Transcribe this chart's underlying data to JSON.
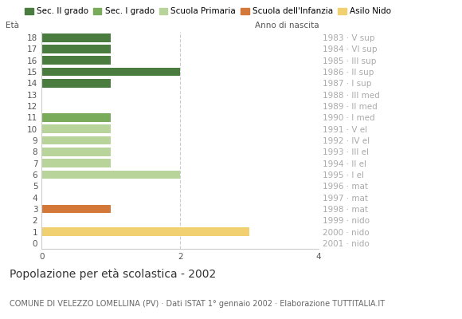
{
  "title": "Popolazione per età scolastica - 2002",
  "subtitle": "COMUNE DI VELEZZO LOMELLINA (PV) · Dati ISTAT 1° gennaio 2002 · Elaborazione TUTTITALIA.IT",
  "label_left": "Età",
  "label_right": "Anno di nascita",
  "xlim": [
    0,
    4
  ],
  "xticks": [
    0,
    2,
    4
  ],
  "background_color": "#ffffff",
  "legend_labels": [
    "Sec. II grado",
    "Sec. I grado",
    "Scuola Primaria",
    "Scuola dell'Infanzia",
    "Asilo Nido"
  ],
  "legend_colors": [
    "#4a7c3f",
    "#7aab5a",
    "#b8d49a",
    "#d4783a",
    "#f0d070"
  ],
  "ages": [
    18,
    17,
    16,
    15,
    14,
    13,
    12,
    11,
    10,
    9,
    8,
    7,
    6,
    5,
    4,
    3,
    2,
    1,
    0
  ],
  "birth_years": [
    "1983 · V sup",
    "1984 · VI sup",
    "1985 · III sup",
    "1986 · II sup",
    "1987 · I sup",
    "1988 · III med",
    "1989 · II med",
    "1990 · I med",
    "1991 · V el",
    "1992 · IV el",
    "1993 · III el",
    "1994 · II el",
    "1995 · I el",
    "1996 · mat",
    "1997 · mat",
    "1998 · mat",
    "1999 · nido",
    "2000 · nido",
    "2001 · nido"
  ],
  "bars": [
    {
      "age": 18,
      "value": 1,
      "color": "#4a7c3f"
    },
    {
      "age": 17,
      "value": 1,
      "color": "#4a7c3f"
    },
    {
      "age": 16,
      "value": 1,
      "color": "#4a7c3f"
    },
    {
      "age": 15,
      "value": 2,
      "color": "#4a7c3f"
    },
    {
      "age": 14,
      "value": 1,
      "color": "#4a7c3f"
    },
    {
      "age": 13,
      "value": 0,
      "color": "#4a7c3f"
    },
    {
      "age": 12,
      "value": 0,
      "color": "#4a7c3f"
    },
    {
      "age": 11,
      "value": 1,
      "color": "#7aab5a"
    },
    {
      "age": 10,
      "value": 1,
      "color": "#b8d49a"
    },
    {
      "age": 9,
      "value": 1,
      "color": "#b8d49a"
    },
    {
      "age": 8,
      "value": 1,
      "color": "#b8d49a"
    },
    {
      "age": 7,
      "value": 1,
      "color": "#b8d49a"
    },
    {
      "age": 6,
      "value": 2,
      "color": "#b8d49a"
    },
    {
      "age": 5,
      "value": 0,
      "color": "#b8d49a"
    },
    {
      "age": 4,
      "value": 0,
      "color": "#d4783a"
    },
    {
      "age": 3,
      "value": 1,
      "color": "#d4783a"
    },
    {
      "age": 2,
      "value": 0,
      "color": "#f0d070"
    },
    {
      "age": 1,
      "value": 3,
      "color": "#f0d070"
    },
    {
      "age": 0,
      "value": 0,
      "color": "#f0d070"
    }
  ],
  "title_fontsize": 10,
  "subtitle_fontsize": 7,
  "tick_fontsize": 7.5,
  "legend_fontsize": 7.5,
  "grid_color": "#cccccc",
  "bar_height": 0.75
}
